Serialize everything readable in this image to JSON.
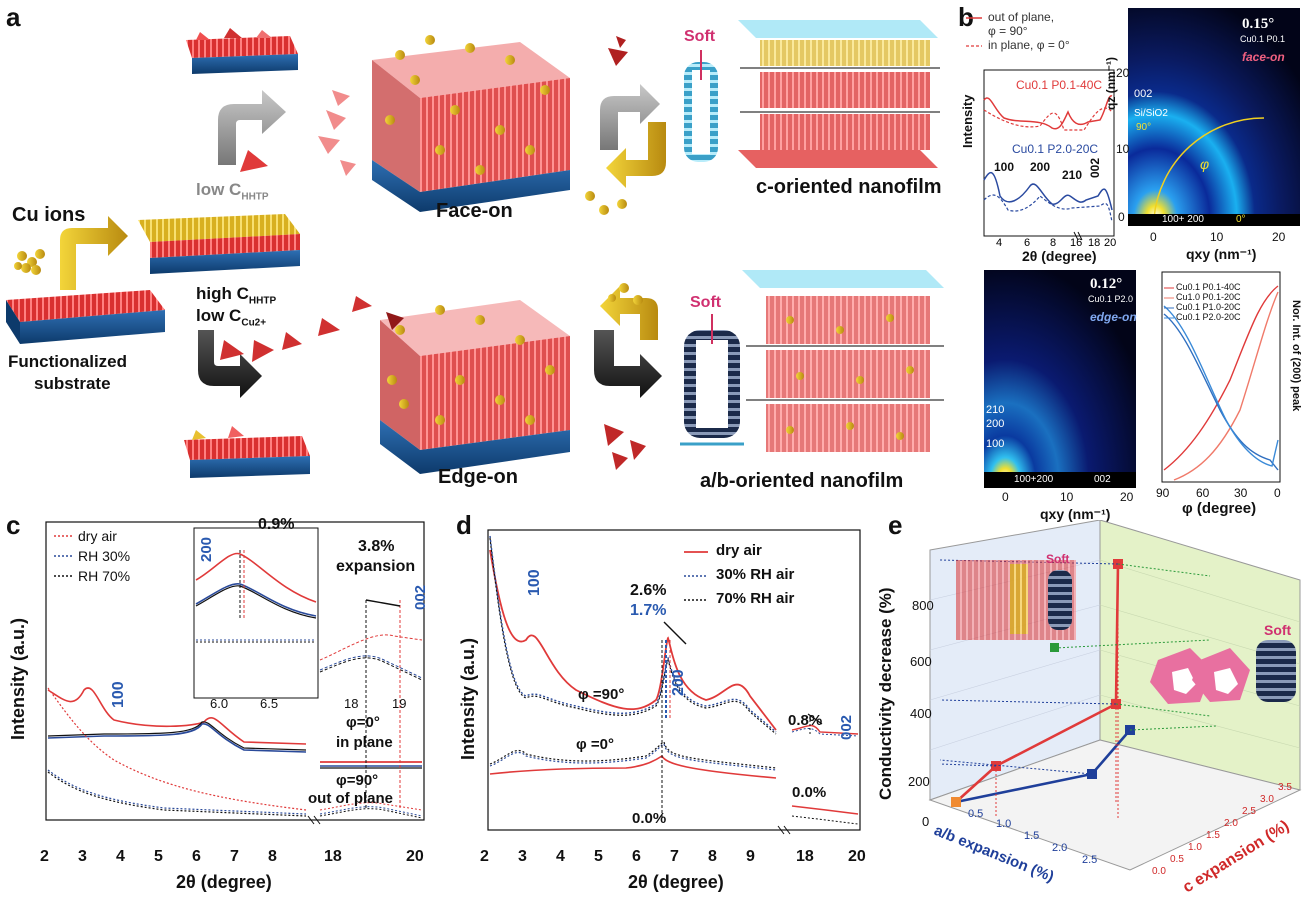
{
  "panels": {
    "a": {
      "letter": "a",
      "cu_ions": "Cu ions",
      "functionalized": "Functionalized",
      "substrate": "substrate",
      "low_c_prefix": "low C",
      "hhtp_sub": "HHTP",
      "high_c_prefix": "high C",
      "low_ccu_prefix": "low C",
      "cu_sub": "Cu2+",
      "face_on": "Face-on",
      "edge_on": "Edge-on",
      "soft_top": "Soft",
      "soft_bottom": "Soft",
      "c_film": "c-oriented nanofilm",
      "ab_film": "a/b-oriented nanofilm"
    },
    "b": {
      "letter": "b",
      "legend_out": "out of plane,",
      "legend_out2": "φ = 90°",
      "legend_in": "in plane, φ = 0°",
      "series_top": "Cu0.1 P0.1-40C",
      "series_bottom": "Cu0.1 P2.0-20C",
      "ylabel": "Intensity",
      "xlabel_main": "2θ (degree)",
      "peak_100": "100",
      "peak_200": "200",
      "peak_210": "210",
      "peak_002": "002",
      "xticks": [
        "4",
        "6",
        "8",
        "16",
        "18",
        "20"
      ],
      "giwaxs1_angle": "0.15°",
      "giwaxs1_sample": "Cu0.1 P0.1",
      "giwaxs1_mode": "face-on",
      "giwaxs1_002": "002",
      "giwaxs1_sio2": "Si/SiO2",
      "giwaxs1_90": "90°",
      "giwaxs1_phi": "φ",
      "giwaxs1_bottom": "100+ 200",
      "giwaxs1_0": "0°",
      "giwaxs1_ylabel": "qz (nm⁻¹)",
      "giwaxs1_xlabel": "qxy (nm⁻¹)",
      "giwaxs1_xticks": [
        "0",
        "10",
        "20"
      ],
      "giwaxs1_yticks": [
        "0",
        "10",
        "20"
      ],
      "giwaxs2_angle": "0.12°",
      "giwaxs2_sample": "Cu0.1 P2.0",
      "giwaxs2_mode": "edge-on",
      "giwaxs2_210": "210",
      "giwaxs2_200": "200",
      "giwaxs2_100": "100",
      "giwaxs2_bottom": "100+200",
      "giwaxs2_002": "002",
      "giwaxs2_xlabel": "qxy (nm⁻¹)",
      "giwaxs2_xticks": [
        "0",
        "10",
        "20"
      ],
      "phi_legend": [
        "Cu0.1 P0.1-40C",
        "Cu1.0 P0.1-20C",
        "Cu0.1 P1.0-20C",
        "Cu0.1 P2.0-20C"
      ],
      "phi_colors": [
        "#e03a3a",
        "#f07a6a",
        "#2f6fc0",
        "#3a8ad8"
      ],
      "phi_ylabel": "Nor. Int. of (200) peak",
      "phi_xlabel": "φ  (degree)",
      "phi_xticks": [
        "90",
        "60",
        "30",
        "0"
      ]
    },
    "c": {
      "letter": "c",
      "legend": [
        "dry air",
        "RH 30%",
        "RH 70%"
      ],
      "colors": [
        "#e03a3a",
        "#2a4a9a",
        "#111111"
      ],
      "ylabel": "Intensity (a.u.)",
      "xlabel": "2θ (degree)",
      "xticks": [
        "2",
        "3",
        "4",
        "5",
        "6",
        "7",
        "8",
        "18",
        "20"
      ],
      "peak_100": "100",
      "inset_200": "200",
      "inset_pct": "0.9%",
      "inset_xticks": [
        "6.0",
        "6.5"
      ],
      "exp_pct": "3.8%",
      "exp_word": "expansion",
      "peak_002": "002",
      "sub_xticks": [
        "18",
        "19"
      ],
      "phi0": "φ=0°",
      "in_plane": "in plane",
      "phi90": "φ=90°",
      "out_plane": "out of plane"
    },
    "d": {
      "letter": "d",
      "legend": [
        "dry air",
        "30% RH air",
        "70% RH air"
      ],
      "colors": [
        "#e03a3a",
        "#2a4a9a",
        "#111111"
      ],
      "ylabel": "Intensity (a.u.)",
      "xlabel": "2θ (degree)",
      "xticks": [
        "2",
        "3",
        "4",
        "5",
        "6",
        "7",
        "8",
        "9",
        "18",
        "20"
      ],
      "peak_100": "100",
      "peak_200": "200",
      "pct_26": "2.6%",
      "pct_17": "1.7%",
      "phi90": "φ =90°",
      "phi0": "φ =0°",
      "pct_00": "0.0%",
      "pct_08": "0.8%",
      "pct_00b": "0.0%",
      "peak_002": "002"
    },
    "e": {
      "letter": "e",
      "zlabel": "Conductivity decrease (%)",
      "xlabel": "a/b expansion (%)",
      "ylabel": "c expansion (%)",
      "zticks": [
        "0",
        "200",
        "400",
        "600",
        "800"
      ],
      "xticks": [
        "0.5",
        "1.0",
        "1.5",
        "2.0",
        "2.5"
      ],
      "yticks": [
        "0.0",
        "0.5",
        "1.0",
        "1.5",
        "2.0",
        "2.5",
        "3.0",
        "3.5"
      ],
      "soft_left": "Soft",
      "soft_right": "Soft",
      "red": "#e03a3a",
      "blue": "#1f3f9a"
    }
  }
}
